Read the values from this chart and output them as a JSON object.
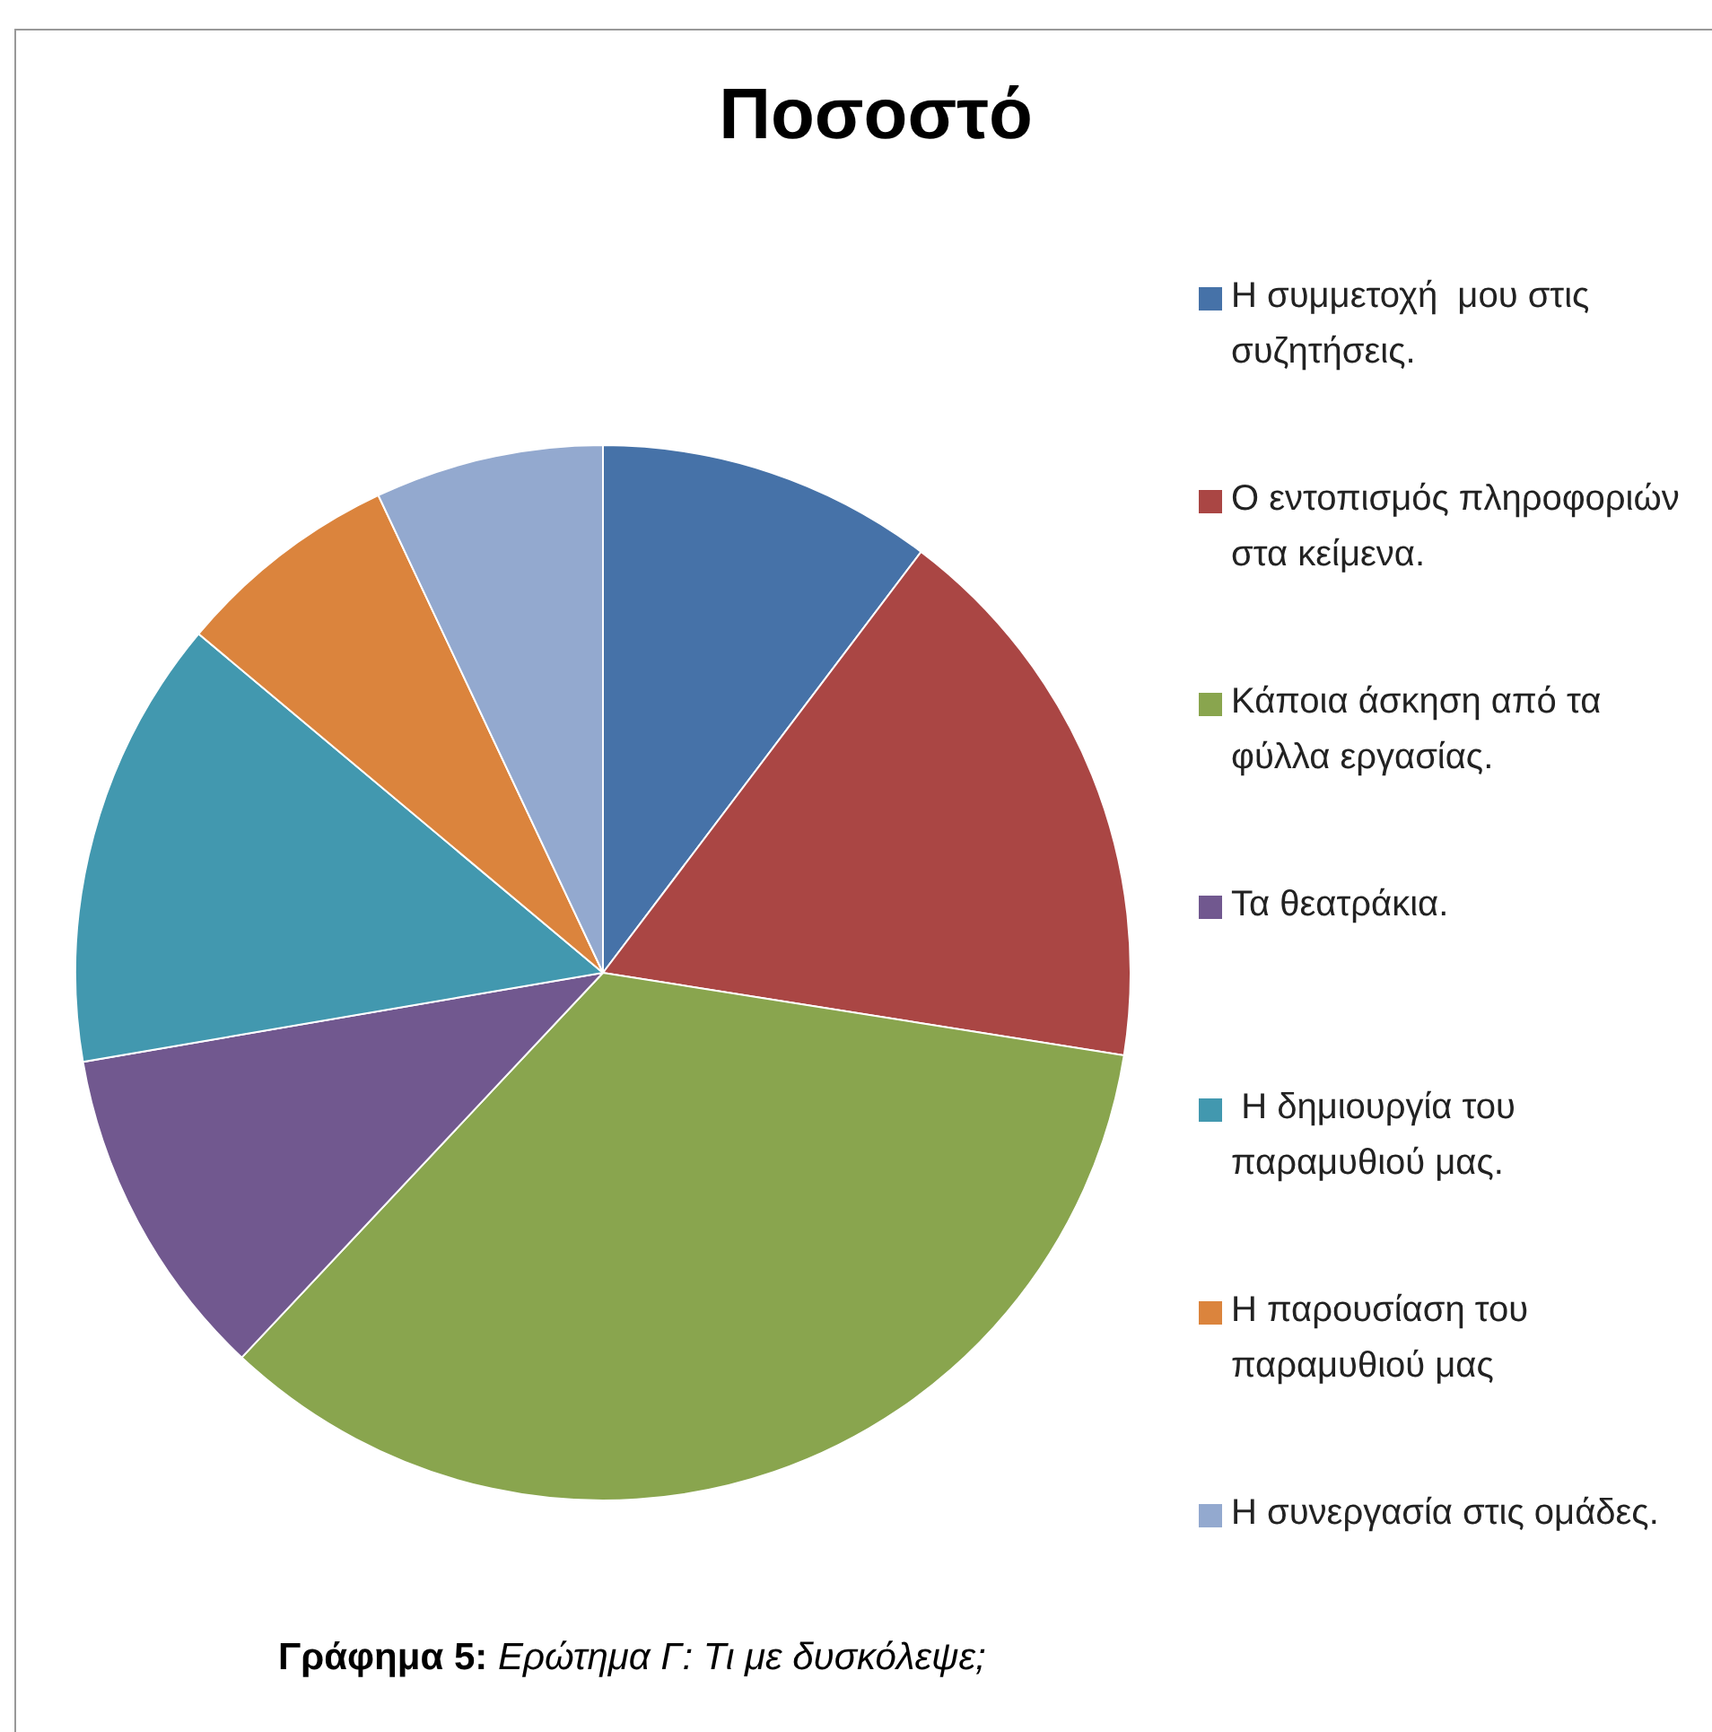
{
  "chart_data": {
    "type": "pie",
    "title": "Ποσοστό",
    "categories": [
      "Η συμμετοχή  μου στις συζητήσεις.",
      "Ο εντοπισμός πληροφοριών στα κείμενα.",
      "Κάποια άσκηση από τα φύλλα εργασίας.",
      "Τα θεατράκια.",
      " Η δημιουργία του παραμυθιού μας.",
      "Η παρουσίαση του παραμυθιού μας",
      "Η συνεργασία στις ομάδες."
    ],
    "values": [
      10.3,
      17.2,
      34.5,
      10.3,
      13.8,
      6.9,
      7.0
    ],
    "colors": [
      "#4672a8",
      "#aa4644",
      "#89a54e",
      "#71588f",
      "#4298af",
      "#db843d",
      "#93a9cf"
    ],
    "legend": "right",
    "annotations": [
      "Γράφημα 5: Ερώτημα Γ: Τι με δυσκόλεψε;"
    ]
  }
}
